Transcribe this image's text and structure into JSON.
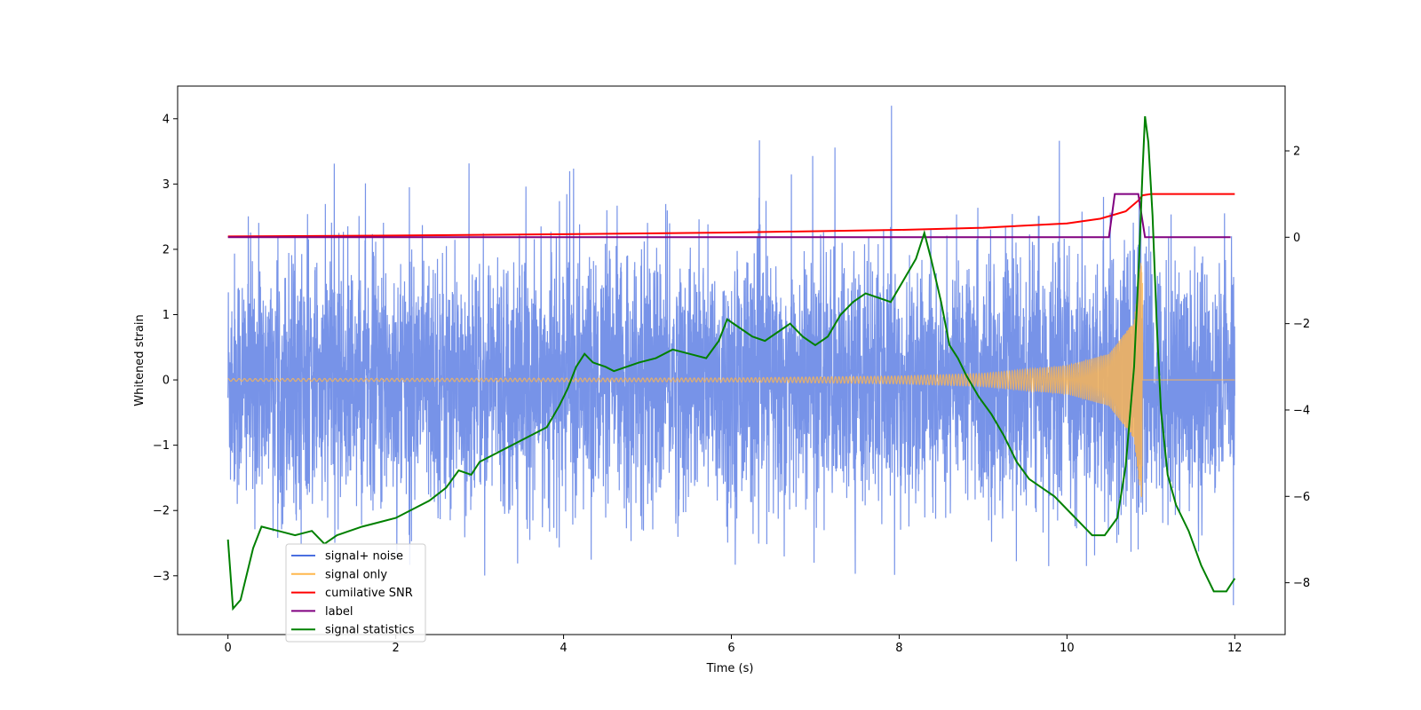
{
  "chart_data": {
    "type": "line",
    "title": "",
    "xlabel": "Time (s)",
    "ylabel": "Whitened strain",
    "xlim": [
      -0.6,
      12.6
    ],
    "ylim": [
      -3.9,
      4.5
    ],
    "y2lim": [
      -9.2,
      3.5
    ],
    "xticks": [
      0,
      2,
      4,
      6,
      8,
      10,
      12
    ],
    "yticks": [
      -3,
      -2,
      -1,
      0,
      1,
      2,
      3,
      4
    ],
    "y2ticks": [
      -8,
      -6,
      -4,
      -2,
      0,
      2
    ],
    "xtick_labels": [
      "0",
      "2",
      "4",
      "6",
      "8",
      "10",
      "12"
    ],
    "ytick_labels": [
      "−3",
      "−2",
      "−1",
      "0",
      "1",
      "2",
      "3",
      "4"
    ],
    "y2tick_labels": [
      "−8",
      "−6",
      "−4",
      "−2",
      "0",
      "2"
    ],
    "legend_position": "lower-left",
    "legend": [
      {
        "label": "signal+ noise",
        "color": "#4a6fe0"
      },
      {
        "label": "signal only",
        "color": "#ffb74d"
      },
      {
        "label": "cumilative SNR",
        "color": "#ff0000"
      },
      {
        "label": "label",
        "color": "#800080"
      },
      {
        "label": "signal statistics",
        "color": "#008000"
      }
    ],
    "series": [
      {
        "name": "signal+ noise",
        "axis": "left",
        "color": "#4a6fe0",
        "description": "noisy whitened strain, amplitude roughly -3.5 to 4.2",
        "x_range": [
          0,
          12
        ],
        "noise_sigma": 0.95,
        "y_min": -3.45,
        "y_max": 4.2
      },
      {
        "name": "signal only",
        "axis": "left",
        "color": "#ffb74d",
        "description": "chirp signal growing to merger",
        "x_range": [
          0,
          12
        ],
        "merger_time": 10.9,
        "amplitude_points": [
          [
            0,
            0.02
          ],
          [
            6,
            0.03
          ],
          [
            8,
            0.06
          ],
          [
            9,
            0.1
          ],
          [
            10,
            0.22
          ],
          [
            10.5,
            0.4
          ],
          [
            10.8,
            0.9
          ],
          [
            10.88,
            1.8
          ]
        ]
      },
      {
        "name": "cumilative SNR",
        "axis": "right",
        "color": "#ff0000",
        "points": [
          [
            0,
            0.02
          ],
          [
            2,
            0.04
          ],
          [
            4,
            0.07
          ],
          [
            6,
            0.11
          ],
          [
            8,
            0.17
          ],
          [
            9,
            0.22
          ],
          [
            10,
            0.32
          ],
          [
            10.4,
            0.43
          ],
          [
            10.7,
            0.6
          ],
          [
            10.85,
            0.85
          ],
          [
            10.9,
            0.97
          ],
          [
            11,
            1.0
          ],
          [
            12,
            1.0
          ]
        ]
      },
      {
        "name": "label",
        "axis": "right",
        "color": "#800080",
        "points": [
          [
            0,
            0
          ],
          [
            10.5,
            0
          ],
          [
            10.57,
            1
          ],
          [
            10.85,
            1
          ],
          [
            10.93,
            0
          ],
          [
            11.95,
            0
          ]
        ]
      },
      {
        "name": "signal statistics",
        "axis": "right",
        "color": "#008000",
        "points": [
          [
            0,
            -7.0
          ],
          [
            0.06,
            -8.6
          ],
          [
            0.15,
            -8.4
          ],
          [
            0.3,
            -7.2
          ],
          [
            0.4,
            -6.7
          ],
          [
            0.6,
            -6.8
          ],
          [
            0.8,
            -6.9
          ],
          [
            1.0,
            -6.8
          ],
          [
            1.15,
            -7.1
          ],
          [
            1.3,
            -6.9
          ],
          [
            1.45,
            -6.8
          ],
          [
            1.6,
            -6.7
          ],
          [
            1.8,
            -6.6
          ],
          [
            2.0,
            -6.5
          ],
          [
            2.2,
            -6.3
          ],
          [
            2.4,
            -6.1
          ],
          [
            2.6,
            -5.8
          ],
          [
            2.75,
            -5.4
          ],
          [
            2.9,
            -5.5
          ],
          [
            3.0,
            -5.2
          ],
          [
            3.2,
            -5.0
          ],
          [
            3.4,
            -4.8
          ],
          [
            3.6,
            -4.6
          ],
          [
            3.8,
            -4.4
          ],
          [
            3.95,
            -3.9
          ],
          [
            4.05,
            -3.5
          ],
          [
            4.15,
            -3.0
          ],
          [
            4.25,
            -2.7
          ],
          [
            4.35,
            -2.9
          ],
          [
            4.5,
            -3.0
          ],
          [
            4.6,
            -3.1
          ],
          [
            4.75,
            -3.0
          ],
          [
            4.9,
            -2.9
          ],
          [
            5.1,
            -2.8
          ],
          [
            5.3,
            -2.6
          ],
          [
            5.5,
            -2.7
          ],
          [
            5.7,
            -2.8
          ],
          [
            5.85,
            -2.4
          ],
          [
            5.95,
            -1.9
          ],
          [
            6.1,
            -2.1
          ],
          [
            6.25,
            -2.3
          ],
          [
            6.4,
            -2.4
          ],
          [
            6.55,
            -2.2
          ],
          [
            6.7,
            -2.0
          ],
          [
            6.85,
            -2.3
          ],
          [
            7.0,
            -2.5
          ],
          [
            7.15,
            -2.3
          ],
          [
            7.3,
            -1.8
          ],
          [
            7.45,
            -1.5
          ],
          [
            7.6,
            -1.3
          ],
          [
            7.75,
            -1.4
          ],
          [
            7.9,
            -1.5
          ],
          [
            8.05,
            -1.0
          ],
          [
            8.2,
            -0.5
          ],
          [
            8.3,
            0.1
          ],
          [
            8.38,
            -0.5
          ],
          [
            8.5,
            -1.5
          ],
          [
            8.6,
            -2.5
          ],
          [
            8.7,
            -2.8
          ],
          [
            8.8,
            -3.2
          ],
          [
            8.95,
            -3.7
          ],
          [
            9.1,
            -4.1
          ],
          [
            9.25,
            -4.6
          ],
          [
            9.4,
            -5.2
          ],
          [
            9.55,
            -5.6
          ],
          [
            9.7,
            -5.8
          ],
          [
            9.85,
            -6.0
          ],
          [
            10.0,
            -6.3
          ],
          [
            10.15,
            -6.6
          ],
          [
            10.3,
            -6.9
          ],
          [
            10.45,
            -6.9
          ],
          [
            10.6,
            -6.5
          ],
          [
            10.7,
            -5.3
          ],
          [
            10.8,
            -3.0
          ],
          [
            10.86,
            -0.5
          ],
          [
            10.9,
            1.5
          ],
          [
            10.93,
            2.8
          ],
          [
            10.97,
            2.2
          ],
          [
            11.02,
            0.5
          ],
          [
            11.07,
            -2.0
          ],
          [
            11.12,
            -4.0
          ],
          [
            11.2,
            -5.5
          ],
          [
            11.3,
            -6.2
          ],
          [
            11.45,
            -6.8
          ],
          [
            11.6,
            -7.6
          ],
          [
            11.75,
            -8.2
          ],
          [
            11.9,
            -8.2
          ],
          [
            12.0,
            -7.9
          ]
        ]
      }
    ]
  }
}
